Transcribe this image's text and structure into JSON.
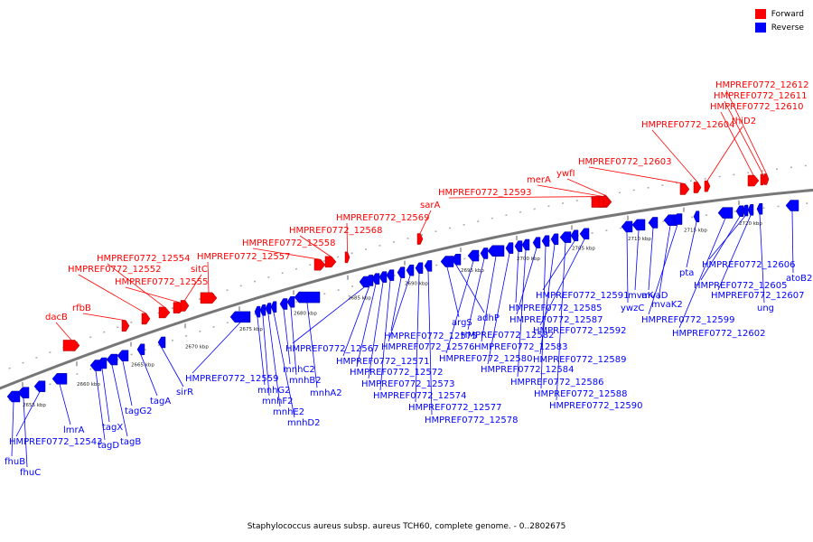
{
  "legend": {
    "forward_label": "Forward",
    "reverse_label": "Reverse",
    "forward_color": "#ff0000",
    "reverse_color": "#0000ff"
  },
  "footer": {
    "caption": "Staphylococcus aureus subsp. aureus TCH60, complete genome. - 0..2802675"
  },
  "chart_data": {
    "type": "genome-map",
    "kbp_ticks": [
      "2655 kbp",
      "2660 kbp",
      "2665 kbp",
      "2670 kbp",
      "2675 kbp",
      "2680 kbp",
      "2685 kbp",
      "2690 kbp",
      "2695 kbp",
      "2700 kbp",
      "2705 kbp",
      "2710 kbp",
      "2715 kbp",
      "2720 kbp"
    ],
    "forward_genes": [
      "dacB",
      "rfbB",
      "HMPREF0772_12552",
      "HMPREF0772_12554",
      "HMPREF0772_12555",
      "sitC",
      "HMPREF0772_12557",
      "HMPREF0772_12558",
      "HMPREF0772_12568",
      "HMPREF0772_12569",
      "sarA",
      "HMPREF0772_12593",
      "merA",
      "ywfI",
      "HMPREF0772_12603",
      "HMPREF0772_12604",
      "thiD2",
      "HMPREF0772_12610",
      "HMPREF0772_12611",
      "HMPREF0772_12612"
    ],
    "reverse_genes": [
      "fhuB",
      "fhuC",
      "HMPREF0772_12543",
      "lmrA",
      "tagD",
      "tagX",
      "tagB",
      "tagG2",
      "tagA",
      "sirR",
      "HMPREF0772_12559",
      "mnhG2",
      "mnhF2",
      "mnhE2",
      "mnhD2",
      "mnhC2",
      "mnhB2",
      "mnhA2",
      "HMPREF0772_12567",
      "HMPREF0772_12571",
      "HMPREF0772_12572",
      "HMPREF0772_12573",
      "HMPREF0772_12574",
      "HMPREF0772_12575",
      "HMPREF0772_12576",
      "HMPREF0772_12577",
      "HMPREF0772_12578",
      "argS",
      "adhP",
      "HMPREF0772_12580",
      "HMPREF0772_12582",
      "HMPREF0772_12583",
      "HMPREF0772_12584",
      "HMPREF0772_12585",
      "HMPREF0772_12586",
      "HMPREF0772_12587",
      "HMPREF0772_12588",
      "HMPREF0772_12589",
      "HMPREF0772_12590",
      "HMPREF0772_12591",
      "HMPREF0772_12592",
      "ywzC",
      "mvaK",
      "mvaD",
      "mvaK2",
      "HMPREF0772_12599",
      "pta",
      "HMPREF0772_12602",
      "HMPREF0772_12605",
      "HMPREF0772_12606",
      "HMPREF0772_12607",
      "ung",
      "atoB2"
    ]
  }
}
